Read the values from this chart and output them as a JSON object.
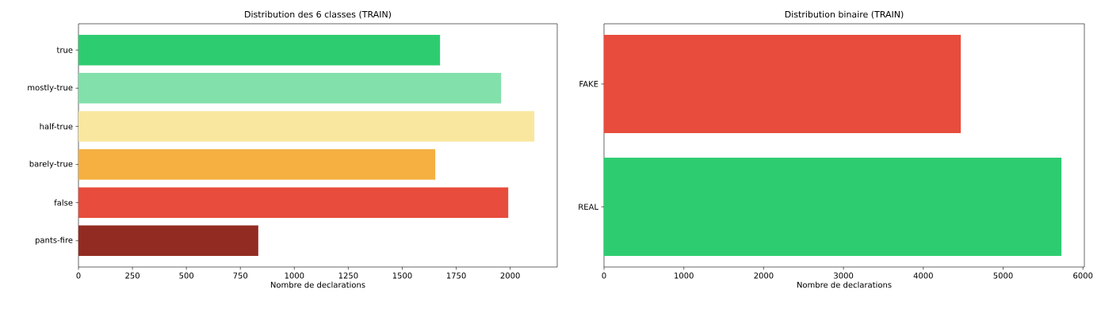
{
  "chart_data": [
    {
      "type": "bar",
      "orientation": "horizontal",
      "title": "Distribution des 6 classes (TRAIN)",
      "xlabel": "Nombre de declarations",
      "categories": [
        "true",
        "mostly-true",
        "half-true",
        "barely-true",
        "false",
        "pants-fire"
      ],
      "values": [
        1675,
        1958,
        2112,
        1653,
        1991,
        833
      ],
      "colors": [
        "#2ecc71",
        "#82e0aa",
        "#f9e79f",
        "#f5b041",
        "#e74c3c",
        "#922b21"
      ],
      "xlim": [
        0,
        2218
      ],
      "xticks": [
        0,
        250,
        500,
        750,
        1000,
        1250,
        1500,
        1750,
        2000
      ]
    },
    {
      "type": "bar",
      "orientation": "horizontal",
      "title": "Distribution binaire (TRAIN)",
      "xlabel": "Nombre de declarations",
      "categories": [
        "FAKE",
        "REAL"
      ],
      "values": [
        4470,
        5731
      ],
      "colors": [
        "#e74c3c",
        "#2ecc71"
      ],
      "xlim": [
        0,
        6018
      ],
      "xticks": [
        0,
        1000,
        2000,
        3000,
        4000,
        5000,
        6000
      ]
    }
  ]
}
